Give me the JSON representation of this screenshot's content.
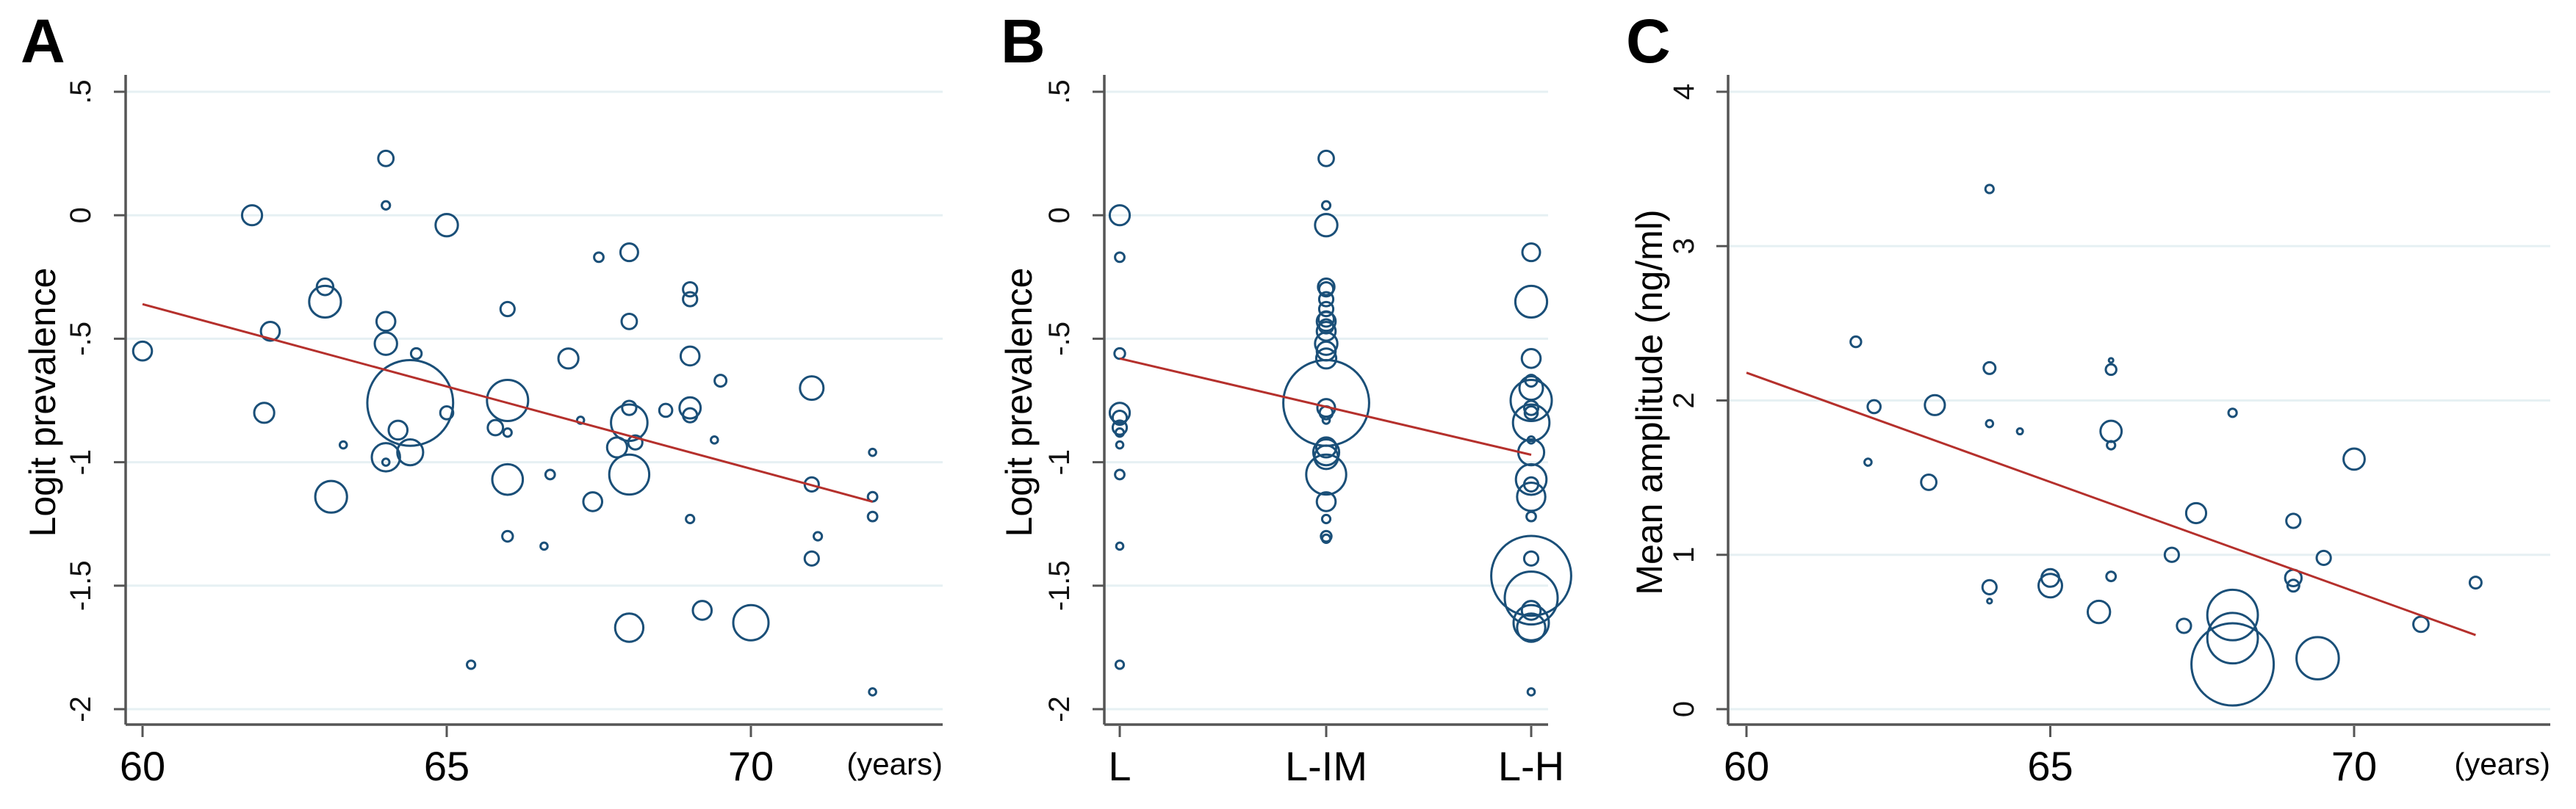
{
  "colors": {
    "bubble": "#1a4f78",
    "fit_line": "#b5302c",
    "grid": "#e6f0f3"
  },
  "chart_data": [
    {
      "panel": "A",
      "type": "scatter",
      "subtype": "bubble",
      "ylabel": "Logit prevalence",
      "xlabel": "(years)",
      "xlim": [
        60,
        73.5
      ],
      "ylim": [
        -2,
        0.5
      ],
      "xticks": [
        "60",
        "65",
        "70"
      ],
      "yticks": [
        ".5",
        "0",
        "-.5",
        "-1",
        "-1.5",
        "-2"
      ],
      "grid": true,
      "fit_line": {
        "x": [
          60,
          72
        ],
        "y": [
          -0.36,
          -1.16
        ]
      },
      "points": [
        {
          "x": 60.0,
          "y": -0.55,
          "w": 16
        },
        {
          "x": 61.8,
          "y": 0.0,
          "w": 17
        },
        {
          "x": 62.1,
          "y": -0.47,
          "w": 16
        },
        {
          "x": 62.0,
          "y": -0.8,
          "w": 17
        },
        {
          "x": 63.0,
          "y": -0.29,
          "w": 14
        },
        {
          "x": 63.0,
          "y": -0.35,
          "w": 27
        },
        {
          "x": 63.1,
          "y": -1.14,
          "w": 27
        },
        {
          "x": 63.3,
          "y": -0.93,
          "w": 6
        },
        {
          "x": 64.0,
          "y": 0.23,
          "w": 13
        },
        {
          "x": 64.0,
          "y": 0.04,
          "w": 7
        },
        {
          "x": 64.0,
          "y": -0.43,
          "w": 16
        },
        {
          "x": 64.0,
          "y": -0.52,
          "w": 19
        },
        {
          "x": 64.0,
          "y": -0.98,
          "w": 24
        },
        {
          "x": 64.0,
          "y": -1.0,
          "w": 6
        },
        {
          "x": 64.2,
          "y": -0.87,
          "w": 16
        },
        {
          "x": 64.4,
          "y": -0.96,
          "w": 22
        },
        {
          "x": 64.5,
          "y": -0.56,
          "w": 9
        },
        {
          "x": 64.4,
          "y": -0.76,
          "w": 73
        },
        {
          "x": 65.0,
          "y": -0.04,
          "w": 19
        },
        {
          "x": 65.0,
          "y": -0.8,
          "w": 11
        },
        {
          "x": 65.4,
          "y": -1.82,
          "w": 7
        },
        {
          "x": 66.0,
          "y": -0.38,
          "w": 12
        },
        {
          "x": 66.0,
          "y": -0.75,
          "w": 35
        },
        {
          "x": 65.8,
          "y": -0.86,
          "w": 13
        },
        {
          "x": 66.0,
          "y": -0.88,
          "w": 7
        },
        {
          "x": 66.0,
          "y": -1.07,
          "w": 26
        },
        {
          "x": 66.0,
          "y": -1.3,
          "w": 9
        },
        {
          "x": 66.6,
          "y": -1.34,
          "w": 6
        },
        {
          "x": 66.7,
          "y": -1.05,
          "w": 8
        },
        {
          "x": 67.0,
          "y": -0.58,
          "w": 17
        },
        {
          "x": 67.2,
          "y": -0.83,
          "w": 6
        },
        {
          "x": 67.4,
          "y": -1.16,
          "w": 16
        },
        {
          "x": 67.5,
          "y": -0.17,
          "w": 8
        },
        {
          "x": 68.0,
          "y": -0.15,
          "w": 15
        },
        {
          "x": 68.0,
          "y": -0.43,
          "w": 13
        },
        {
          "x": 68.0,
          "y": -0.78,
          "w": 12
        },
        {
          "x": 68.0,
          "y": -0.84,
          "w": 31
        },
        {
          "x": 67.8,
          "y": -0.94,
          "w": 17
        },
        {
          "x": 68.1,
          "y": -0.92,
          "w": 12
        },
        {
          "x": 68.0,
          "y": -1.05,
          "w": 34
        },
        {
          "x": 68.0,
          "y": -1.67,
          "w": 24
        },
        {
          "x": 68.6,
          "y": -0.79,
          "w": 11
        },
        {
          "x": 69.0,
          "y": -0.3,
          "w": 12
        },
        {
          "x": 69.0,
          "y": -0.34,
          "w": 12
        },
        {
          "x": 69.0,
          "y": -0.57,
          "w": 16
        },
        {
          "x": 69.0,
          "y": -0.78,
          "w": 18
        },
        {
          "x": 69.0,
          "y": -0.81,
          "w": 12
        },
        {
          "x": 69.0,
          "y": -1.23,
          "w": 7
        },
        {
          "x": 69.4,
          "y": -0.91,
          "w": 6
        },
        {
          "x": 69.5,
          "y": -0.67,
          "w": 10
        },
        {
          "x": 69.2,
          "y": -1.6,
          "w": 16
        },
        {
          "x": 70.0,
          "y": -1.65,
          "w": 30
        },
        {
          "x": 71.0,
          "y": -0.7,
          "w": 20
        },
        {
          "x": 71.0,
          "y": -1.09,
          "w": 12
        },
        {
          "x": 71.1,
          "y": -1.3,
          "w": 7
        },
        {
          "x": 71.0,
          "y": -1.39,
          "w": 12
        },
        {
          "x": 72.0,
          "y": -0.96,
          "w": 6
        },
        {
          "x": 72.0,
          "y": -1.14,
          "w": 8
        },
        {
          "x": 72.0,
          "y": -1.22,
          "w": 8
        },
        {
          "x": 72.0,
          "y": -1.93,
          "w": 6
        }
      ]
    },
    {
      "panel": "B",
      "type": "scatter",
      "subtype": "bubble",
      "ylabel": "Logit prevalence",
      "categories": [
        "L",
        "L-IM",
        "L-H"
      ],
      "ylim": [
        -2,
        0.5
      ],
      "yticks": [
        ".5",
        "0",
        "-.5",
        "-1",
        "-1.5",
        "-2"
      ],
      "grid": true,
      "fit_line": {
        "x": [
          "L",
          "L-H"
        ],
        "y": [
          -0.58,
          -0.97
        ]
      },
      "groups": [
        {
          "category": "L",
          "points": [
            {
              "y": 0.0,
              "w": 17
            },
            {
              "y": -0.17,
              "w": 8
            },
            {
              "y": -0.56,
              "w": 9
            },
            {
              "y": -0.8,
              "w": 17
            },
            {
              "y": -0.82,
              "w": 12
            },
            {
              "y": -0.86,
              "w": 12
            },
            {
              "y": -0.88,
              "w": 7
            },
            {
              "y": -0.93,
              "w": 6
            },
            {
              "y": -1.05,
              "w": 8
            },
            {
              "y": -1.34,
              "w": 6
            },
            {
              "y": -1.82,
              "w": 7
            }
          ]
        },
        {
          "category": "L-IM",
          "points": [
            {
              "y": 0.23,
              "w": 13
            },
            {
              "y": 0.04,
              "w": 7
            },
            {
              "y": -0.04,
              "w": 19
            },
            {
              "y": -0.29,
              "w": 14
            },
            {
              "y": -0.3,
              "w": 12
            },
            {
              "y": -0.34,
              "w": 12
            },
            {
              "y": -0.38,
              "w": 12
            },
            {
              "y": -0.42,
              "w": 13
            },
            {
              "y": -0.43,
              "w": 16
            },
            {
              "y": -0.45,
              "w": 12
            },
            {
              "y": -0.47,
              "w": 16
            },
            {
              "y": -0.52,
              "w": 19
            },
            {
              "y": -0.55,
              "w": 16
            },
            {
              "y": -0.58,
              "w": 17
            },
            {
              "y": -0.76,
              "w": 73
            },
            {
              "y": -0.78,
              "w": 15
            },
            {
              "y": -0.8,
              "w": 11
            },
            {
              "y": -0.83,
              "w": 6
            },
            {
              "y": -0.94,
              "w": 17
            },
            {
              "y": -0.96,
              "w": 22
            },
            {
              "y": -0.98,
              "w": 20
            },
            {
              "y": -1.05,
              "w": 34
            },
            {
              "y": -1.16,
              "w": 16
            },
            {
              "y": -1.23,
              "w": 7
            },
            {
              "y": -1.3,
              "w": 9
            },
            {
              "y": -1.31,
              "w": 7
            }
          ]
        },
        {
          "category": "L-H",
          "points": [
            {
              "y": -0.15,
              "w": 15
            },
            {
              "y": -0.35,
              "w": 27
            },
            {
              "y": -0.58,
              "w": 16
            },
            {
              "y": -0.67,
              "w": 10
            },
            {
              "y": -0.7,
              "w": 20
            },
            {
              "y": -0.75,
              "w": 35
            },
            {
              "y": -0.78,
              "w": 12
            },
            {
              "y": -0.8,
              "w": 11
            },
            {
              "y": -0.84,
              "w": 31
            },
            {
              "y": -0.91,
              "w": 6
            },
            {
              "y": -0.96,
              "w": 22
            },
            {
              "y": -1.07,
              "w": 26
            },
            {
              "y": -1.09,
              "w": 12
            },
            {
              "y": -1.14,
              "w": 24
            },
            {
              "y": -1.22,
              "w": 8
            },
            {
              "y": -1.39,
              "w": 12
            },
            {
              "y": -1.46,
              "w": 68
            },
            {
              "y": -1.55,
              "w": 45
            },
            {
              "y": -1.6,
              "w": 16
            },
            {
              "y": -1.65,
              "w": 30
            },
            {
              "y": -1.67,
              "w": 24
            },
            {
              "y": -1.93,
              "w": 6
            }
          ]
        }
      ]
    },
    {
      "panel": "C",
      "type": "scatter",
      "subtype": "bubble",
      "ylabel": "Mean amplitude (ng/ml)",
      "xlabel": "(years)",
      "xlim": [
        60,
        73.2
      ],
      "ylim": [
        0,
        4
      ],
      "xticks": [
        "60",
        "65",
        "70"
      ],
      "yticks": [
        "4",
        "3",
        "2",
        "1",
        "0"
      ],
      "grid": true,
      "fit_line": {
        "x": [
          60,
          72
        ],
        "y": [
          2.18,
          0.48
        ]
      },
      "points": [
        {
          "x": 61.8,
          "y": 2.38,
          "w": 9
        },
        {
          "x": 62.0,
          "y": 1.6,
          "w": 6
        },
        {
          "x": 62.1,
          "y": 1.96,
          "w": 11
        },
        {
          "x": 63.0,
          "y": 1.47,
          "w": 13
        },
        {
          "x": 63.1,
          "y": 1.97,
          "w": 17
        },
        {
          "x": 64.0,
          "y": 3.37,
          "w": 7
        },
        {
          "x": 64.0,
          "y": 2.21,
          "w": 10
        },
        {
          "x": 64.0,
          "y": 1.85,
          "w": 6
        },
        {
          "x": 64.0,
          "y": 0.79,
          "w": 12
        },
        {
          "x": 64.0,
          "y": 0.7,
          "w": 4
        },
        {
          "x": 64.5,
          "y": 1.8,
          "w": 5
        },
        {
          "x": 65.0,
          "y": 0.85,
          "w": 15
        },
        {
          "x": 65.0,
          "y": 0.8,
          "w": 20
        },
        {
          "x": 65.8,
          "y": 0.63,
          "w": 19
        },
        {
          "x": 66.0,
          "y": 2.26,
          "w": 3
        },
        {
          "x": 66.0,
          "y": 2.2,
          "w": 9
        },
        {
          "x": 66.0,
          "y": 1.8,
          "w": 18
        },
        {
          "x": 66.0,
          "y": 1.71,
          "w": 7
        },
        {
          "x": 66.0,
          "y": 0.86,
          "w": 8
        },
        {
          "x": 67.0,
          "y": 1.0,
          "w": 12
        },
        {
          "x": 67.2,
          "y": 0.54,
          "w": 12
        },
        {
          "x": 67.4,
          "y": 1.27,
          "w": 17
        },
        {
          "x": 68.0,
          "y": 1.92,
          "w": 7
        },
        {
          "x": 68.0,
          "y": 0.61,
          "w": 43
        },
        {
          "x": 68.0,
          "y": 0.46,
          "w": 43
        },
        {
          "x": 68.0,
          "y": 0.29,
          "w": 70
        },
        {
          "x": 69.0,
          "y": 1.22,
          "w": 12
        },
        {
          "x": 69.0,
          "y": 0.85,
          "w": 14
        },
        {
          "x": 69.0,
          "y": 0.8,
          "w": 10
        },
        {
          "x": 69.5,
          "y": 0.98,
          "w": 12
        },
        {
          "x": 69.4,
          "y": 0.33,
          "w": 36
        },
        {
          "x": 70.0,
          "y": 1.62,
          "w": 18
        },
        {
          "x": 71.1,
          "y": 0.55,
          "w": 13
        },
        {
          "x": 72.0,
          "y": 0.82,
          "w": 10
        }
      ]
    }
  ]
}
